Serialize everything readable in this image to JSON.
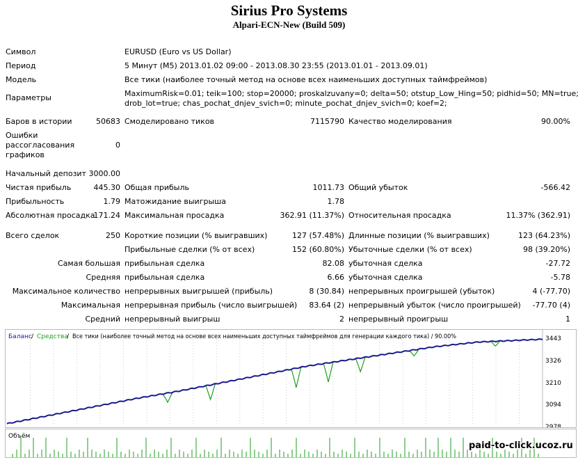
{
  "header": {
    "title": "Sirius Pro Systems",
    "subtitle": "Alpari-ECN-New (Build 509)"
  },
  "info": [
    {
      "label": "Символ",
      "value": "EURUSD (Euro vs US Dollar)"
    },
    {
      "label": "Период",
      "value": "5 Минут (M5) 2013.01.02 09:00 - 2013.08.30 23:55 (2013.01.01 - 2013.09.01)"
    },
    {
      "label": "Модель",
      "value": "Все тики (наиболее точный метод на основе всех наименьших доступных таймфреймов)"
    },
    {
      "label": "Параметры",
      "value_line1": "MaximumRisk=0.01; teik=100; stop=20000; proskalzuvany=0; delta=50; otstup_Low_Hing=50; pidhid=50; MN=true;",
      "value_line2": "drob_lot=true; chas_pochat_dnjev_svich=0; minute_pochat_dnjev_svich=0; koef=2;"
    }
  ],
  "bars": {
    "label": "Баров в истории",
    "value": "50683",
    "ticks_label": "Смоделировано тиков",
    "ticks_value": "7115790",
    "quality_label": "Качество моделирования",
    "quality_value": "90.00%"
  },
  "errors": {
    "label_lines": [
      "Ошибки",
      "рассогласования",
      "графиков"
    ],
    "value": "0"
  },
  "deposit": {
    "label": "Начальный депозит",
    "value": "3000.00"
  },
  "stats": [
    {
      "l1": "Чистая прибыль",
      "v1": "445.30",
      "l2": "Общая прибыль",
      "v2": "1011.73",
      "l3": "Общий убыток",
      "v3": "-566.42"
    },
    {
      "l1": "Прибыльность",
      "v1": "1.79",
      "l2": "Матожидание выигрыша",
      "v2": "1.78",
      "l3": "",
      "v3": ""
    },
    {
      "l1": "Абсолютная просадка",
      "v1": "171.24",
      "l2": "Максимальная просадка",
      "v2": "362.91 (11.37%)",
      "l3": "Относительная просадка",
      "v3": "11.37% (362.91)"
    }
  ],
  "trades": [
    {
      "l1": "Всего сделок",
      "v1": "250",
      "l2": "Короткие позиции (% выигравших)",
      "v2": "127 (57.48%)",
      "l3": "Длинные позиции (% выигравших)",
      "v3": "123 (64.23%)"
    },
    {
      "l1": "",
      "v1": "",
      "l2": "Прибыльные сделки (% от всех)",
      "v2": "152 (60.80%)",
      "l3": "Убыточные сделки (% от всех)",
      "v3": "98 (39.20%)"
    },
    {
      "l1": "Самая большая",
      "v1": "",
      "l2": "прибыльная сделка",
      "v2": "82.08",
      "l3": "убыточная сделка",
      "v3": "-27.72"
    },
    {
      "l1": "Средняя",
      "v1": "",
      "l2": "прибыльная сделка",
      "v2": "6.66",
      "l3": "убыточная сделка",
      "v3": "-5.78"
    },
    {
      "l1": "Максимальное количество",
      "v1": "",
      "l2": "непрерывных выигрышей (прибыль)",
      "v2": "8 (30.84)",
      "l3": "непрерывных проигрышей (убыток)",
      "v3": "4 (-77.70)"
    },
    {
      "l1": "Максимальная",
      "v1": "",
      "l2": "непрерывная прибыль (число выигрышей)",
      "v2": "83.64 (2)",
      "l3": "непрерывный убыток (число проигрышей)",
      "v3": "-77.70 (4)"
    },
    {
      "l1": "Средний",
      "v1": "",
      "l2": "непрерывный выигрыш",
      "v2": "2",
      "l3": "непрерывный проигрыш",
      "v3": "1"
    }
  ],
  "chart_data": {
    "type": "line",
    "legend": {
      "balance": "Баланс",
      "sep1": " / ",
      "equity": "Средства",
      "sep2": " / ",
      "rest": "Все тики (наиболее точный метод на основе всех наименьших доступных таймфреймов для генерации каждого тика) / 90.00%"
    },
    "yticks": [
      "3443",
      "3326",
      "3210",
      "3094",
      "2978"
    ],
    "ylim": [
      2978,
      3443
    ],
    "balance": [
      [
        0,
        2990
      ],
      [
        20,
        3035
      ],
      [
        40,
        3080
      ],
      [
        60,
        3125
      ],
      [
        80,
        3165
      ],
      [
        100,
        3210
      ],
      [
        120,
        3255
      ],
      [
        140,
        3300
      ],
      [
        160,
        3335
      ],
      [
        180,
        3370
      ],
      [
        200,
        3405
      ],
      [
        220,
        3430
      ],
      [
        250,
        3445
      ]
    ],
    "equity_dips": [
      [
        75,
        3105
      ],
      [
        95,
        3120
      ],
      [
        135,
        3185
      ],
      [
        150,
        3215
      ],
      [
        165,
        3270
      ],
      [
        190,
        3355
      ],
      [
        228,
        3408
      ]
    ],
    "colors": {
      "balance": "#1a1a8c",
      "equity": "#1e9e1e",
      "grid": "#c9c9c9",
      "volume": "#1e9e1e"
    },
    "volume_label": "Объём"
  },
  "watermark": "paid-to-click.ucoz.ru"
}
